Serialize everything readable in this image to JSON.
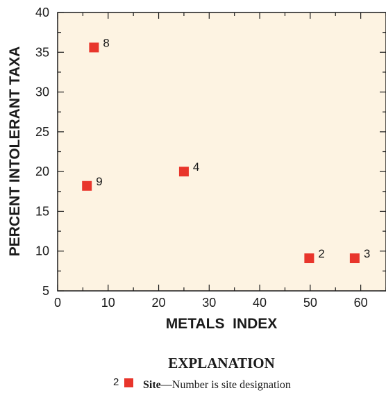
{
  "chart_data": {
    "type": "scatter",
    "xlabel": "METALS  INDEX",
    "ylabel": "PERCENT INTOLERANT TAXA",
    "xlim": [
      0,
      65
    ],
    "ylim": [
      5,
      40
    ],
    "xticks": [
      "0",
      "10",
      "20",
      "30",
      "40",
      "50",
      "60"
    ],
    "yticks": [
      "5",
      "10",
      "15",
      "20",
      "25",
      "30",
      "35",
      "40"
    ],
    "grid": false,
    "colors": {
      "background": "#fdf3e2",
      "marker": "#e8352b",
      "axis": "#1a1a1a"
    },
    "points": [
      {
        "label": "8",
        "x": 7.2,
        "y": 35.6
      },
      {
        "label": "4",
        "x": 25,
        "y": 20
      },
      {
        "label": "9",
        "x": 5.8,
        "y": 18.2
      },
      {
        "label": "2",
        "x": 49.8,
        "y": 9.1
      },
      {
        "label": "3",
        "x": 58.8,
        "y": 9.1
      }
    ]
  },
  "explanation": {
    "title": "EXPLANATION",
    "marker_number": "2",
    "site_label": "Site",
    "description": "—Number is site designation"
  }
}
